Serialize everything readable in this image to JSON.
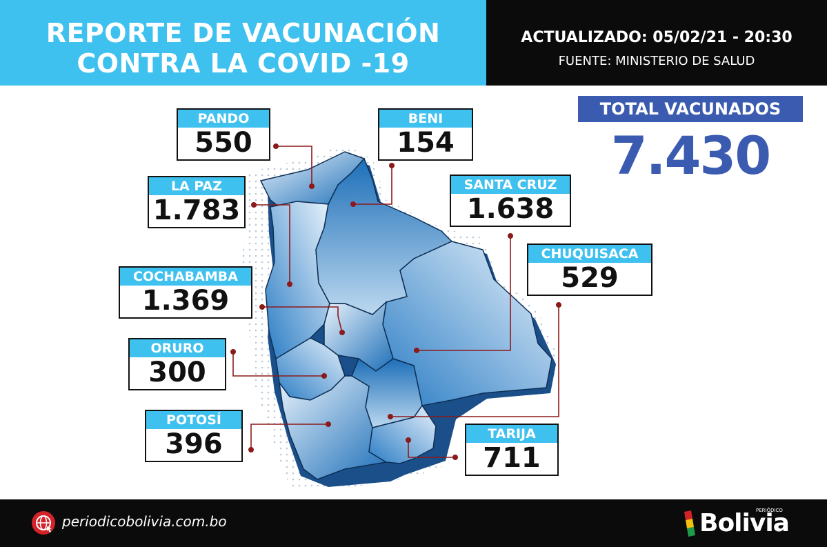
{
  "header": {
    "title_line1": "REPORTE DE VACUNACIÓN",
    "title_line2": "CONTRA LA COVID -19",
    "updated": "ACTUALIZADO: 05/02/21 - 20:30",
    "source": "FUENTE: MINISTERIO DE SALUD"
  },
  "total": {
    "label": "TOTAL VACUNADOS",
    "value": "7.430"
  },
  "departments": {
    "pando": {
      "label": "PANDO",
      "value": "550"
    },
    "beni": {
      "label": "BENI",
      "value": "154"
    },
    "la_paz": {
      "label": "LA PAZ",
      "value": "1.783"
    },
    "santa_cruz": {
      "label": "SANTA CRUZ",
      "value": "1.638"
    },
    "chuquisaca": {
      "label": "CHUQUISACA",
      "value": "529"
    },
    "cochabamba": {
      "label": "COCHABAMBA",
      "value": "1.369"
    },
    "oruro": {
      "label": "ORURO",
      "value": "300"
    },
    "potosi": {
      "label": "POTOSÍ",
      "value": "396"
    },
    "tarija": {
      "label": "TARIJA",
      "value": "711"
    }
  },
  "footer": {
    "url": "periodicobolivia.com.bo",
    "brand": "Bolivia",
    "brand_small": "PERIÓDICO"
  },
  "colors": {
    "accent_cyan": "#3fc1ef",
    "total_blue": "#3a5bb0",
    "leader_red": "#8b1a1a",
    "map_blue": "#1d6fb8",
    "dark": "#0b0b0b"
  }
}
